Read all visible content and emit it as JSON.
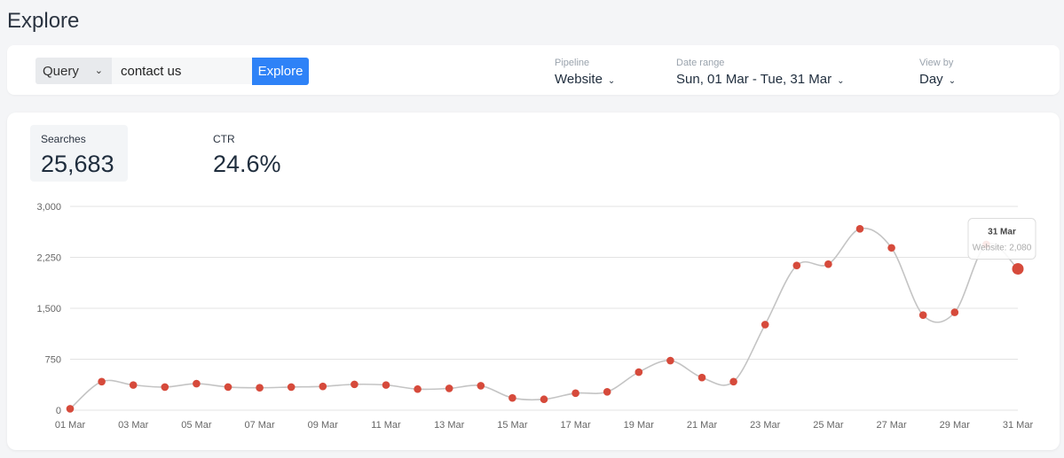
{
  "page": {
    "title": "Explore"
  },
  "toolbar": {
    "query_type": "Query",
    "query_value": "contact us",
    "explore_label": "Explore",
    "pipeline": {
      "label": "Pipeline",
      "value": "Website"
    },
    "date_range": {
      "label": "Date range",
      "value": "Sun, 01 Mar - Tue, 31 Mar"
    },
    "view_by": {
      "label": "View by",
      "value": "Day"
    }
  },
  "metrics": {
    "searches": {
      "label": "Searches",
      "value": "25,683"
    },
    "ctr": {
      "label": "CTR",
      "value": "24.6%"
    }
  },
  "colors": {
    "accent": "#2e82f7",
    "point": "#d64a3b",
    "line": "#c4c4c4",
    "grid": "#e3e3e3"
  },
  "tooltip": {
    "title": "31 Mar",
    "body": "Website: 2,080"
  },
  "chart_data": {
    "type": "line",
    "ylim": [
      0,
      3000
    ],
    "yticks": [
      "0",
      "750",
      "1,500",
      "2,250",
      "3,000"
    ],
    "ytick_values": [
      0,
      750,
      1500,
      2250,
      3000
    ],
    "grid": true,
    "x": [
      "01 Mar",
      "02 Mar",
      "03 Mar",
      "04 Mar",
      "05 Mar",
      "06 Mar",
      "07 Mar",
      "08 Mar",
      "09 Mar",
      "10 Mar",
      "11 Mar",
      "12 Mar",
      "13 Mar",
      "14 Mar",
      "15 Mar",
      "16 Mar",
      "17 Mar",
      "18 Mar",
      "19 Mar",
      "20 Mar",
      "21 Mar",
      "22 Mar",
      "23 Mar",
      "24 Mar",
      "25 Mar",
      "26 Mar",
      "27 Mar",
      "28 Mar",
      "29 Mar",
      "30 Mar",
      "31 Mar"
    ],
    "xtick_labels": [
      "01 Mar",
      "03 Mar",
      "05 Mar",
      "07 Mar",
      "09 Mar",
      "11 Mar",
      "13 Mar",
      "15 Mar",
      "17 Mar",
      "19 Mar",
      "21 Mar",
      "23 Mar",
      "25 Mar",
      "27 Mar",
      "29 Mar",
      "31 Mar"
    ],
    "series": [
      {
        "name": "Website",
        "values": [
          20,
          420,
          370,
          340,
          390,
          340,
          330,
          340,
          350,
          380,
          370,
          310,
          320,
          360,
          180,
          160,
          250,
          270,
          560,
          730,
          480,
          420,
          1260,
          2130,
          2150,
          2670,
          2390,
          1400,
          1440,
          2440,
          2080
        ]
      }
    ]
  }
}
